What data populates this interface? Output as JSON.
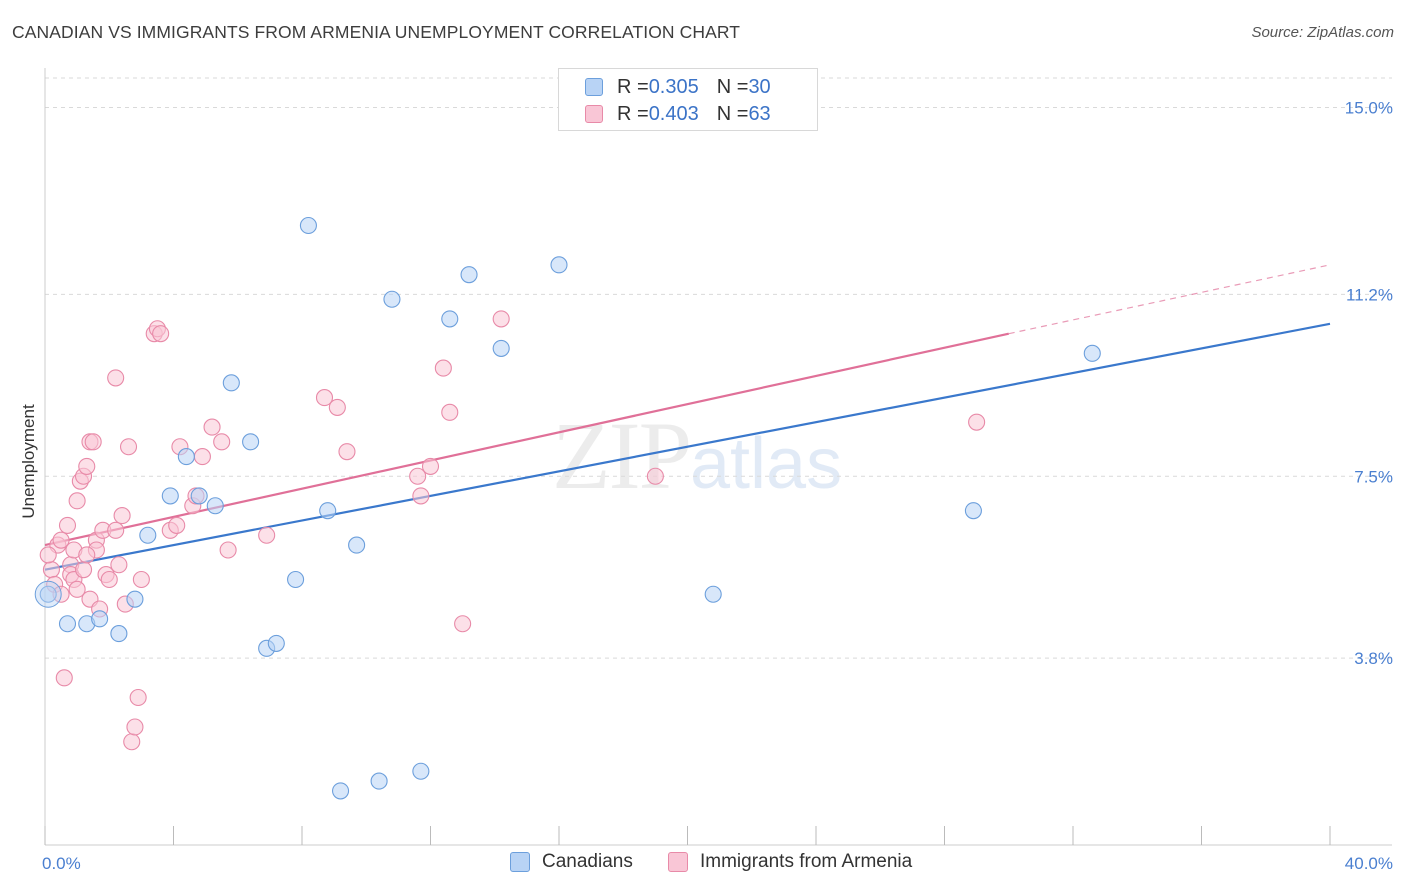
{
  "title": "CANADIAN VS IMMIGRANTS FROM ARMENIA UNEMPLOYMENT CORRELATION CHART",
  "source": "Source: ZipAtlas.com",
  "watermark": {
    "zip": "ZIP",
    "atlas": "atlas"
  },
  "legend": {
    "series1": {
      "r_label": "R = ",
      "r_value": "0.305",
      "n_label": "N = ",
      "n_value": "30"
    },
    "series2": {
      "r_label": "R = ",
      "r_value": "0.403",
      "n_label": "N = ",
      "n_value": "63"
    }
  },
  "colors": {
    "blue_fill": "#b8d3f5",
    "blue_stroke": "#6c9fdc",
    "blue_line": "#3a78cc",
    "pink_fill": "#f9c6d6",
    "pink_stroke": "#e88aa8",
    "pink_line": "#e07098",
    "grid": "#d9d9d9",
    "axis_label": "#4a7fd0"
  },
  "chart_data": {
    "type": "scatter",
    "title": "CANADIAN VS IMMIGRANTS FROM ARMENIA UNEMPLOYMENT CORRELATION CHART",
    "xlabel": "",
    "ylabel": "Unemployment",
    "xlim": [
      0,
      40
    ],
    "ylim": [
      0,
      15.6
    ],
    "x_tick_labels": [
      "0.0%",
      "40.0%"
    ],
    "y_ticks": [
      3.8,
      7.5,
      11.2,
      15.0
    ],
    "y_tick_labels": [
      "3.8%",
      "7.5%",
      "11.2%",
      "15.0%"
    ],
    "grid": true,
    "series": [
      {
        "name": "Canadians",
        "color": "#6c9fdc",
        "trend": {
          "x0": 0,
          "y0": 5.6,
          "x1": 40,
          "y1": 10.6
        },
        "points": [
          [
            0.1,
            5.1
          ],
          [
            0.7,
            4.5
          ],
          [
            1.3,
            4.5
          ],
          [
            1.7,
            4.6
          ],
          [
            2.3,
            4.3
          ],
          [
            2.8,
            5.0
          ],
          [
            3.2,
            6.3
          ],
          [
            3.9,
            7.1
          ],
          [
            4.4,
            7.9
          ],
          [
            4.8,
            7.1
          ],
          [
            5.3,
            6.9
          ],
          [
            5.8,
            9.4
          ],
          [
            6.4,
            8.2
          ],
          [
            6.9,
            4.0
          ],
          [
            7.2,
            4.1
          ],
          [
            7.8,
            5.4
          ],
          [
            8.2,
            12.6
          ],
          [
            8.8,
            6.8
          ],
          [
            9.2,
            1.1
          ],
          [
            9.7,
            6.1
          ],
          [
            10.4,
            1.3
          ],
          [
            10.8,
            11.1
          ],
          [
            11.7,
            1.5
          ],
          [
            12.6,
            10.7
          ],
          [
            13.2,
            11.6
          ],
          [
            14.2,
            10.1
          ],
          [
            16.0,
            11.8
          ],
          [
            20.8,
            5.1
          ],
          [
            28.9,
            6.8
          ],
          [
            32.6,
            10.0
          ]
        ]
      },
      {
        "name": "Immigrants from Armenia",
        "color": "#e88aa8",
        "trend": {
          "x0": 0,
          "y0": 6.1,
          "x1": 30,
          "y1": 10.4,
          "dash_to_x": 40,
          "dash_to_y": 11.8
        },
        "points": [
          [
            0.2,
            5.6
          ],
          [
            0.3,
            5.3
          ],
          [
            0.4,
            6.1
          ],
          [
            0.5,
            5.1
          ],
          [
            0.6,
            3.4
          ],
          [
            0.7,
            6.5
          ],
          [
            0.8,
            5.7
          ],
          [
            0.9,
            6.0
          ],
          [
            0.8,
            5.5
          ],
          [
            0.9,
            5.4
          ],
          [
            1.0,
            5.2
          ],
          [
            1.0,
            7.0
          ],
          [
            1.1,
            7.4
          ],
          [
            1.2,
            5.6
          ],
          [
            1.2,
            7.5
          ],
          [
            1.3,
            7.7
          ],
          [
            1.4,
            5.0
          ],
          [
            1.4,
            8.2
          ],
          [
            1.5,
            8.2
          ],
          [
            1.6,
            6.2
          ],
          [
            1.6,
            6.0
          ],
          [
            1.7,
            4.8
          ],
          [
            1.8,
            6.4
          ],
          [
            1.9,
            5.5
          ],
          [
            2.0,
            5.4
          ],
          [
            2.2,
            6.4
          ],
          [
            2.2,
            9.5
          ],
          [
            2.3,
            5.7
          ],
          [
            2.4,
            6.7
          ],
          [
            2.5,
            4.9
          ],
          [
            2.6,
            8.1
          ],
          [
            2.7,
            2.1
          ],
          [
            2.8,
            2.4
          ],
          [
            2.9,
            3.0
          ],
          [
            3.0,
            5.4
          ],
          [
            3.4,
            10.4
          ],
          [
            3.5,
            10.5
          ],
          [
            3.6,
            10.4
          ],
          [
            3.9,
            6.4
          ],
          [
            4.1,
            6.5
          ],
          [
            4.2,
            8.1
          ],
          [
            4.6,
            6.9
          ],
          [
            4.7,
            7.1
          ],
          [
            4.9,
            7.9
          ],
          [
            5.2,
            8.5
          ],
          [
            5.5,
            8.2
          ],
          [
            5.7,
            6.0
          ],
          [
            6.9,
            6.3
          ],
          [
            8.7,
            9.1
          ],
          [
            9.1,
            8.9
          ],
          [
            9.4,
            8.0
          ],
          [
            11.6,
            7.5
          ],
          [
            11.7,
            7.1
          ],
          [
            12.0,
            7.7
          ],
          [
            12.4,
            9.7
          ],
          [
            12.6,
            8.8
          ],
          [
            13.0,
            4.5
          ],
          [
            14.2,
            10.7
          ],
          [
            19.0,
            7.5
          ],
          [
            29.0,
            8.6
          ],
          [
            0.1,
            5.9
          ],
          [
            0.5,
            6.2
          ],
          [
            1.3,
            5.9
          ]
        ]
      }
    ]
  },
  "bottom_legend": {
    "series1": "Canadians",
    "series2": "Immigrants from Armenia"
  }
}
